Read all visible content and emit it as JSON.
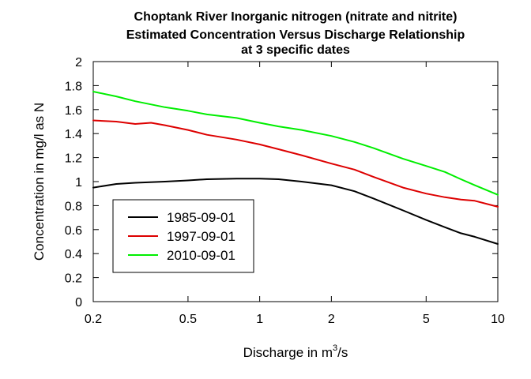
{
  "chart_data": {
    "type": "line",
    "title": [
      "Choptank River    Inorganic nitrogen (nitrate and nitrite)",
      "Estimated Concentration Versus Discharge Relationship",
      "at 3 specific dates"
    ],
    "xlabel": {
      "prefix": "Discharge in m",
      "sup": "3",
      "suffix": "/s"
    },
    "ylabel": "Concentration in mg/l as N",
    "xscale": "log",
    "xlim": [
      0.2,
      10
    ],
    "ylim": [
      0,
      2
    ],
    "xticks": [
      0.2,
      0.5,
      1,
      2,
      5,
      10
    ],
    "xtick_labels": [
      "0.2",
      "0.5",
      "1",
      "2",
      "5",
      "10"
    ],
    "yticks": [
      0,
      0.2,
      0.4,
      0.6,
      0.8,
      1,
      1.2,
      1.4,
      1.6,
      1.8,
      2
    ],
    "ytick_labels": [
      "0",
      "0.2",
      "0.4",
      "0.6",
      "0.8",
      "1",
      "1.2",
      "1.4",
      "1.6",
      "1.8",
      "2"
    ],
    "grid": false,
    "legend_position": "lower-left",
    "series": [
      {
        "name": "1985-09-01",
        "color": "#000000",
        "x": [
          0.2,
          0.25,
          0.3,
          0.4,
          0.5,
          0.6,
          0.8,
          1,
          1.2,
          1.5,
          2,
          2.5,
          3,
          4,
          5,
          6,
          7,
          8,
          10
        ],
        "y": [
          0.95,
          0.98,
          0.99,
          1.0,
          1.01,
          1.02,
          1.025,
          1.025,
          1.02,
          1.0,
          0.97,
          0.92,
          0.86,
          0.76,
          0.68,
          0.62,
          0.57,
          0.54,
          0.48
        ]
      },
      {
        "name": "1997-09-01",
        "color": "#dd0000",
        "x": [
          0.2,
          0.25,
          0.3,
          0.35,
          0.4,
          0.5,
          0.6,
          0.8,
          1,
          1.2,
          1.5,
          2,
          2.5,
          3,
          4,
          5,
          6,
          7,
          8,
          10
        ],
        "y": [
          1.51,
          1.5,
          1.48,
          1.49,
          1.47,
          1.43,
          1.39,
          1.35,
          1.31,
          1.27,
          1.22,
          1.15,
          1.1,
          1.04,
          0.95,
          0.9,
          0.87,
          0.85,
          0.84,
          0.79
        ]
      },
      {
        "name": "2010-09-01",
        "color": "#00ee00",
        "x": [
          0.2,
          0.25,
          0.3,
          0.4,
          0.5,
          0.6,
          0.8,
          1,
          1.2,
          1.5,
          2,
          2.5,
          3,
          4,
          5,
          6,
          7,
          8,
          10
        ],
        "y": [
          1.75,
          1.71,
          1.67,
          1.62,
          1.59,
          1.56,
          1.53,
          1.49,
          1.46,
          1.43,
          1.38,
          1.33,
          1.28,
          1.19,
          1.13,
          1.08,
          1.02,
          0.97,
          0.89
        ]
      }
    ]
  }
}
